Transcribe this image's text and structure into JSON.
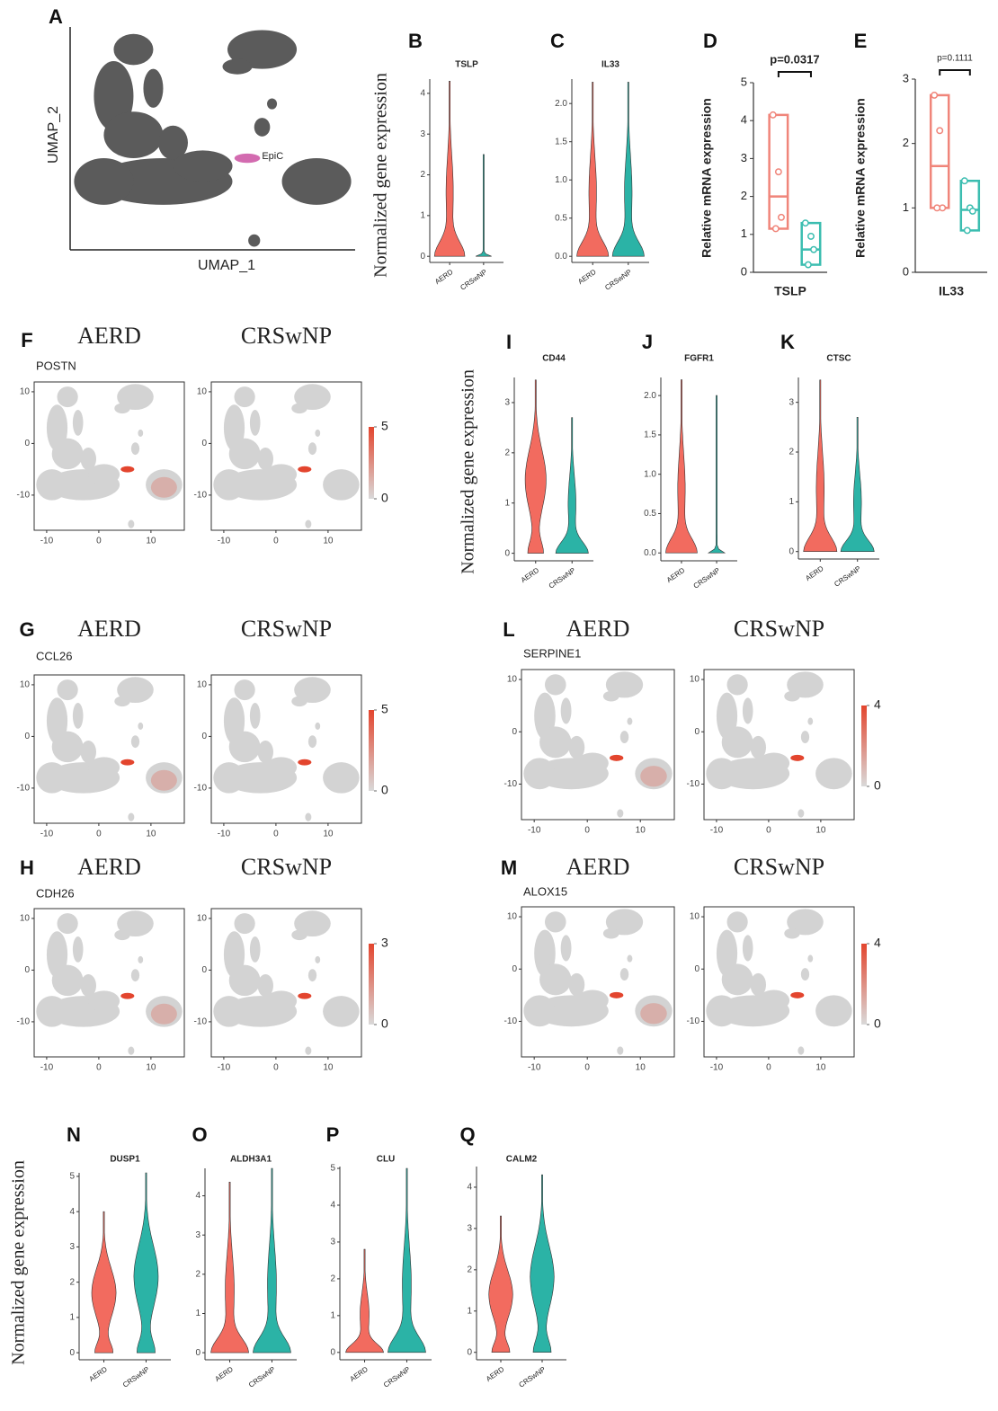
{
  "chart_data": [
    {
      "type": "umap",
      "label": "A",
      "xlabel": "UMAP_1",
      "ylabel": "UMAP_2",
      "cluster": "EpiC",
      "color": "#5b5b5b",
      "highlight_color": "#d36bb0"
    },
    {
      "type": "violin",
      "label": "B",
      "title": "TSLP",
      "ylabel": "Normalized gene expression",
      "categories": [
        "AERD",
        "CRSwNP"
      ],
      "colors": [
        "#f26b5f",
        "#2bb3a6"
      ],
      "values": [
        4.3,
        2.5
      ],
      "ylim": [
        -0.15,
        4.35
      ],
      "yticks": [
        0,
        1,
        2,
        3,
        4
      ]
    },
    {
      "type": "violin",
      "label": "C",
      "title": "IL33",
      "categories": [
        "AERD",
        "CRSwNP"
      ],
      "colors": [
        "#f26b5f",
        "#2bb3a6"
      ],
      "values": [
        2.28,
        2.28
      ],
      "ylim": [
        -0.08,
        2.32
      ],
      "yticks": [
        {
          "value": 0,
          "label": "0.0"
        },
        0.5,
        {
          "value": 1,
          "label": "1.0"
        },
        1.5,
        {
          "value": 2,
          "label": "2.0"
        }
      ]
    },
    {
      "type": "box",
      "label": "D",
      "annotation": "p=0.0317",
      "xlabel": "TSLP",
      "ylabel": "Relative mRNA expression",
      "ylim": [
        0,
        5
      ],
      "yticks": [
        0,
        1,
        2,
        3,
        4,
        5
      ],
      "groups": [
        {
          "color": "#f0857a",
          "values": [
            4.15,
            2.65,
            1.45,
            1.15
          ],
          "box": [
            1.15,
            2.0,
            4.15
          ]
        },
        {
          "color": "#3bbdb0",
          "values": [
            1.3,
            0.95,
            0.6,
            0.2
          ],
          "box": [
            0.2,
            0.6,
            1.3
          ]
        }
      ]
    },
    {
      "type": "box",
      "label": "E",
      "annotation": "p=0.1111",
      "xlabel": "IL33",
      "ylabel": "Relative mRNA expression",
      "ylim": [
        0,
        3
      ],
      "yticks": [
        0,
        1,
        2,
        3
      ],
      "groups": [
        {
          "color": "#f0857a",
          "values": [
            2.75,
            2.2,
            1.0,
            1.0
          ],
          "box": [
            1.0,
            1.65,
            2.75
          ]
        },
        {
          "color": "#3bbdb0",
          "values": [
            1.42,
            1.0,
            0.95,
            0.65
          ],
          "box": [
            0.65,
            0.97,
            1.42
          ]
        }
      ]
    },
    {
      "type": "feature",
      "label": "F",
      "gene": "POSTN",
      "panels": [
        "AERD",
        "CRSwNP"
      ],
      "xlim": [
        -12.4,
        16.4
      ],
      "ylim": [
        -16.8,
        11.9
      ],
      "xticks": [
        -10,
        0,
        10
      ],
      "yticks": [
        -10,
        0,
        10
      ],
      "colorbar": {
        "ticks": [
          0,
          5
        ],
        "colors": [
          "#d9d9d9",
          "#e3452e"
        ]
      }
    },
    {
      "type": "violin",
      "label": "I",
      "title": "CD44",
      "ylabel": "Normalized gene expression",
      "categories": [
        "AERD",
        "CRSwNP"
      ],
      "colors": [
        "#f26b5f",
        "#2bb3a6"
      ],
      "values": [
        3.45,
        2.7
      ],
      "ylim": [
        -0.15,
        3.5
      ],
      "yticks": [
        0,
        1,
        2,
        3
      ]
    },
    {
      "type": "violin",
      "label": "J",
      "title": "FGFR1",
      "categories": [
        "AERD",
        "CRSwNP"
      ],
      "colors": [
        "#f26b5f",
        "#2bb3a6"
      ],
      "values": [
        2.2,
        2.0
      ],
      "ylim": [
        -0.1,
        2.23
      ],
      "yticks": [
        {
          "value": 0,
          "label": "0.0"
        },
        0.5,
        {
          "value": 1,
          "label": "1.0"
        },
        1.5,
        {
          "value": 2,
          "label": "2.0"
        }
      ]
    },
    {
      "type": "violin",
      "label": "K",
      "title": "CTSC",
      "categories": [
        "AERD",
        "CRSwNP"
      ],
      "colors": [
        "#f26b5f",
        "#2bb3a6"
      ],
      "values": [
        3.45,
        2.7
      ],
      "ylim": [
        -0.15,
        3.5
      ],
      "yticks": [
        0,
        1,
        2,
        3
      ]
    },
    {
      "type": "feature",
      "label": "G",
      "gene": "CCL26",
      "panels": [
        "AERD",
        "CRSwNP"
      ],
      "xlim": [
        -12.4,
        16.4
      ],
      "ylim": [
        -16.8,
        11.9
      ],
      "xticks": [
        -10,
        0,
        10
      ],
      "yticks": [
        -10,
        0,
        10
      ],
      "colorbar": {
        "ticks": [
          0,
          5
        ],
        "colors": [
          "#d9d9d9",
          "#e3452e"
        ]
      }
    },
    {
      "type": "feature",
      "label": "L",
      "gene": "SERPINE1",
      "panels": [
        "AERD",
        "CRSwNP"
      ],
      "xlim": [
        -12.4,
        16.4
      ],
      "ylim": [
        -16.8,
        11.9
      ],
      "xticks": [
        -10,
        0,
        10
      ],
      "yticks": [
        -10,
        0,
        10
      ],
      "colorbar": {
        "ticks": [
          0,
          4
        ],
        "colors": [
          "#d9d9d9",
          "#e3452e"
        ]
      }
    },
    {
      "type": "feature",
      "label": "H",
      "gene": "CDH26",
      "panels": [
        "AERD",
        "CRSwNP"
      ],
      "xlim": [
        -12.4,
        16.4
      ],
      "ylim": [
        -16.8,
        11.9
      ],
      "xticks": [
        -10,
        0,
        10
      ],
      "yticks": [
        -10,
        0,
        10
      ],
      "colorbar": {
        "ticks": [
          0,
          3
        ],
        "colors": [
          "#d9d9d9",
          "#e3452e"
        ]
      }
    },
    {
      "type": "feature",
      "label": "M",
      "gene": "ALOX15",
      "panels": [
        "AERD",
        "CRSwNP"
      ],
      "xlim": [
        -12.4,
        16.4
      ],
      "ylim": [
        -16.8,
        11.9
      ],
      "xticks": [
        -10,
        0,
        10
      ],
      "yticks": [
        -10,
        0,
        10
      ],
      "colorbar": {
        "ticks": [
          0,
          4
        ],
        "colors": [
          "#d9d9d9",
          "#e3452e"
        ]
      }
    },
    {
      "type": "violin",
      "label": "N",
      "title": "DUSP1",
      "ylabel": "Normalized gene expression",
      "categories": [
        "AERD",
        "CRSwNP"
      ],
      "colors": [
        "#f26b5f",
        "#2bb3a6"
      ],
      "values": [
        4.0,
        5.1
      ],
      "ylim": [
        -0.2,
        5.1
      ],
      "yticks": [
        0,
        1,
        2,
        3,
        4,
        5
      ]
    },
    {
      "type": "violin",
      "label": "O",
      "title": "ALDH3A1",
      "categories": [
        "AERD",
        "CRSwNP"
      ],
      "colors": [
        "#f26b5f",
        "#2bb3a6"
      ],
      "values": [
        4.35,
        4.7
      ],
      "ylim": [
        -0.18,
        4.7
      ],
      "yticks": [
        0,
        1,
        2,
        3,
        4
      ]
    },
    {
      "type": "violin",
      "label": "P",
      "title": "CLU",
      "categories": [
        "AERD",
        "CRSwNP"
      ],
      "colors": [
        "#f26b5f",
        "#2bb3a6"
      ],
      "values": [
        2.8,
        5.0
      ],
      "ylim": [
        -0.2,
        5.05
      ],
      "yticks": [
        0,
        1,
        2,
        3,
        4,
        5
      ]
    },
    {
      "type": "violin",
      "label": "Q",
      "title": "CALM2",
      "categories": [
        "AERD",
        "CRSwNP"
      ],
      "colors": [
        "#f26b5f",
        "#2bb3a6"
      ],
      "values": [
        3.3,
        4.3
      ],
      "ylim": [
        -0.18,
        4.5
      ],
      "yticks": [
        0,
        1,
        2,
        3,
        4
      ]
    }
  ]
}
